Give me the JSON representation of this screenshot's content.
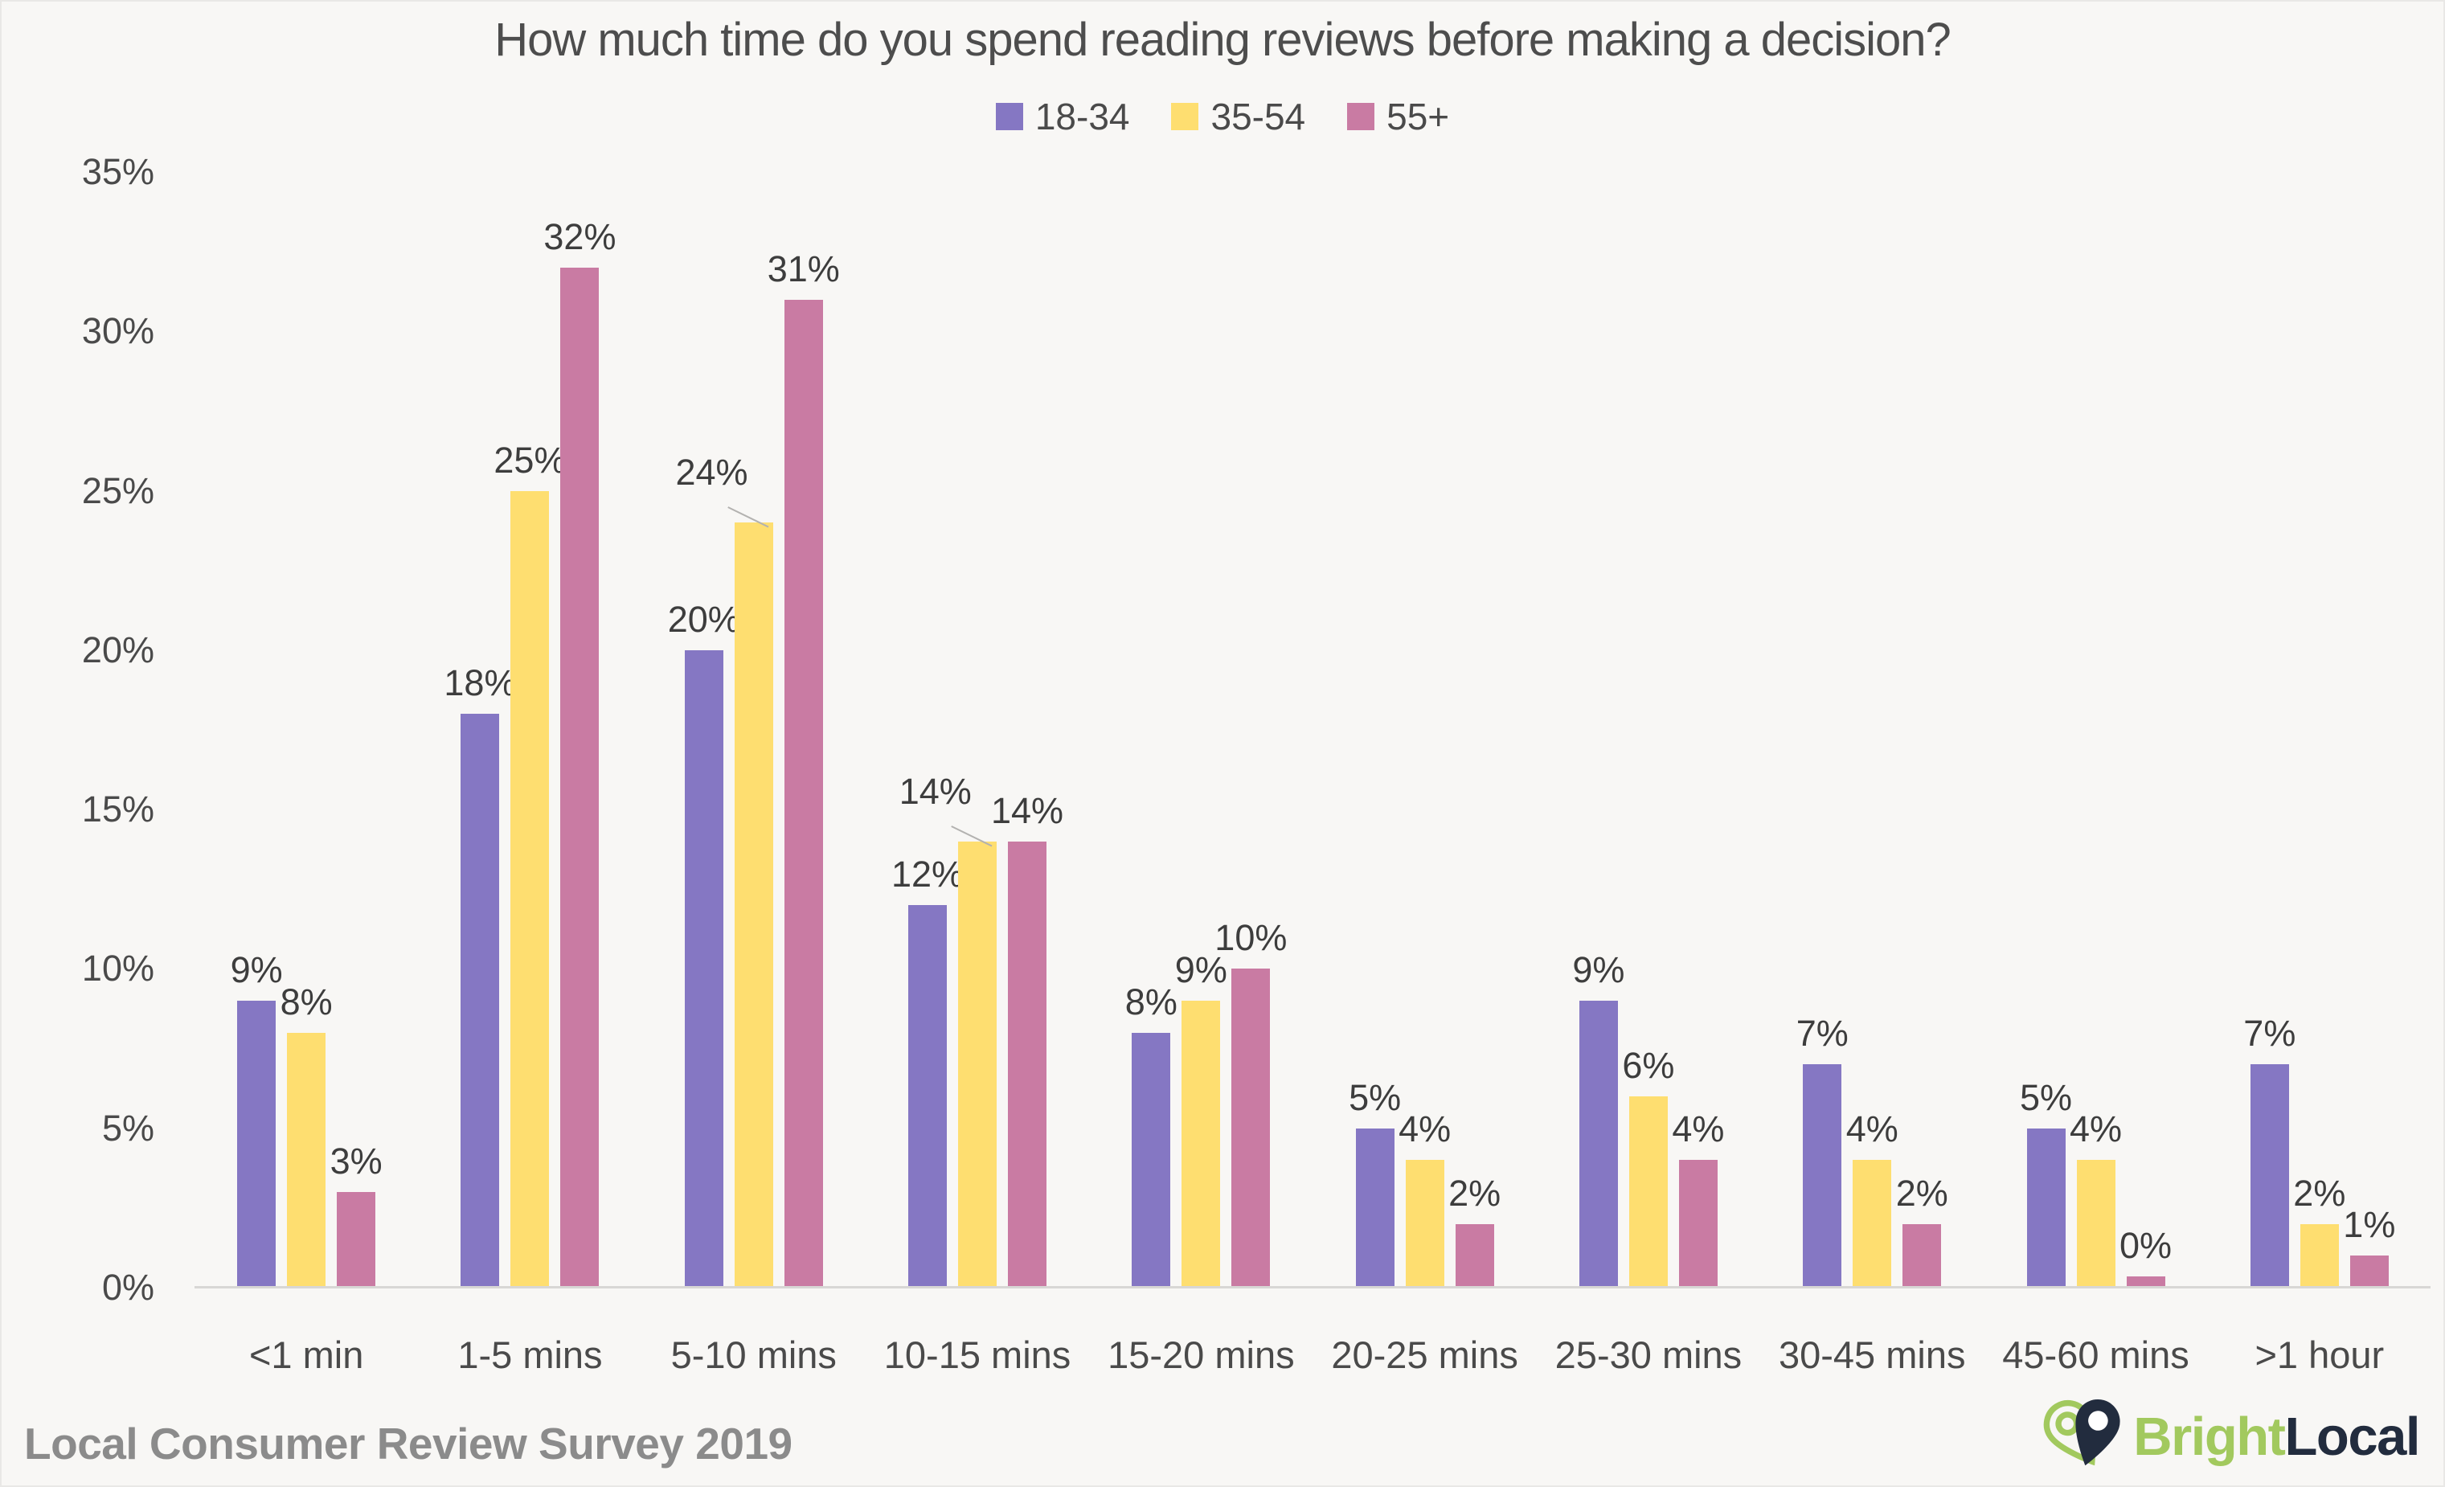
{
  "page": {
    "background": "#f8f7f5",
    "border_color": "#e9e8e6"
  },
  "chart_data": {
    "type": "bar",
    "title": "How much time do you spend reading reviews before making a decision?",
    "categories": [
      "<1 min",
      "1-5 mins",
      "5-10 mins",
      "10-15 mins",
      "15-20 mins",
      "20-25 mins",
      "25-30 mins",
      "30-45 mins",
      "45-60 mins",
      ">1 hour"
    ],
    "series": [
      {
        "name": "18-34",
        "color": "#8577C3",
        "values": [
          9,
          18,
          20,
          12,
          8,
          5,
          9,
          7,
          5,
          7
        ]
      },
      {
        "name": "35-54",
        "color": "#FEDE70",
        "values": [
          8,
          25,
          24,
          14,
          9,
          4,
          6,
          4,
          4,
          2
        ]
      },
      {
        "name": "55+",
        "color": "#C97BA3",
        "values": [
          3,
          32,
          31,
          14,
          10,
          2,
          4,
          2,
          0,
          1
        ]
      }
    ],
    "value_suffix": "%",
    "y_ticks": [
      "35%",
      "30%",
      "25%",
      "20%",
      "15%",
      "10%",
      "5%",
      "0%"
    ],
    "ylim": [
      0,
      35
    ],
    "grid": false,
    "legend_position": "top-center",
    "data_labels": true,
    "label_leader_lines": [
      {
        "category": "5-10 mins",
        "series": "35-54"
      },
      {
        "category": "10-15 mins",
        "series": "35-54"
      }
    ]
  },
  "footer": {
    "source": "Local Consumer Review Survey 2019",
    "brand": {
      "bright": "Bright",
      "local": "Local"
    }
  },
  "colors": {
    "title_text": "#4d4d4d",
    "axis_text": "#4a4a4a",
    "data_label_text": "#3d3d3d",
    "baseline": "#d8d7d5",
    "footer_text": "#8b8b8b",
    "brand_green": "#a2c95e",
    "brand_navy": "#222c3e"
  }
}
